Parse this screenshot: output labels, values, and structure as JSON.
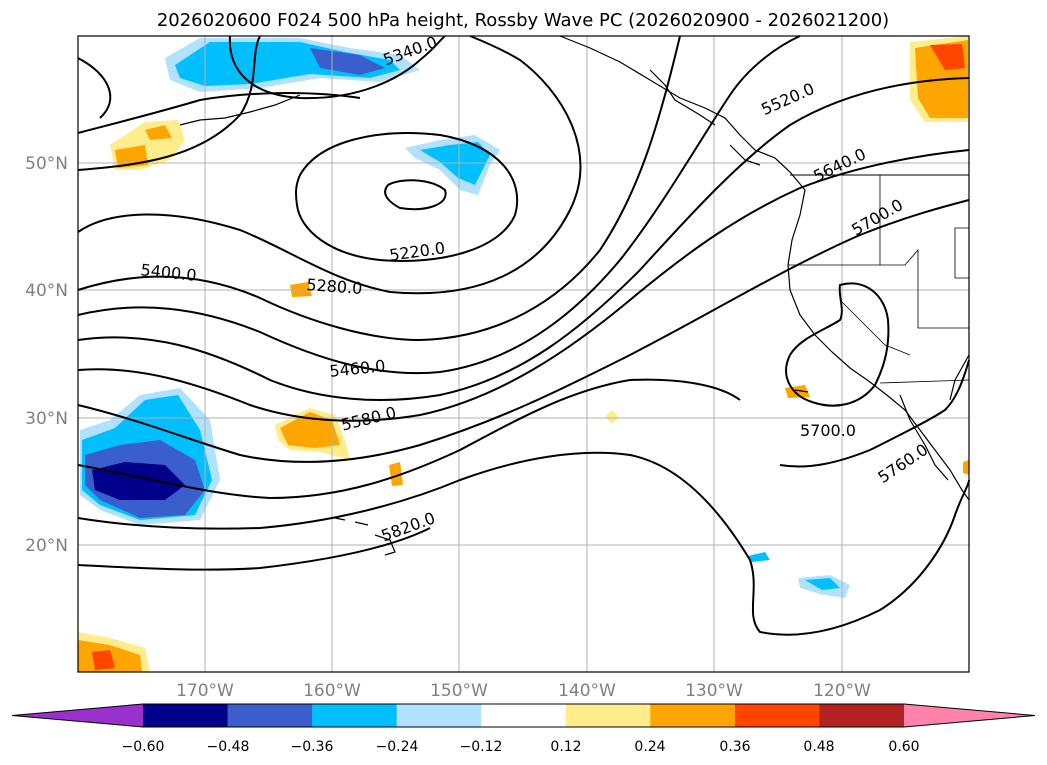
{
  "title": "2026020600 F024 500 hPa height, Rossby Wave PC (2026020900 - 2026021200)",
  "map": {
    "projection": "PlateCarree",
    "lat_labels": [
      "50°N",
      "40°N",
      "30°N",
      "20°N"
    ],
    "lon_labels": [
      "170°W",
      "160°W",
      "150°W",
      "140°W",
      "130°W",
      "120°W"
    ],
    "contour_labels": [
      "5400.0",
      "5280.0",
      "5220.0",
      "5460.0",
      "5580.0",
      "5820.0",
      "5520.0",
      "5640.0",
      "5700.0",
      "5700.0",
      "5760.0",
      "5340.0"
    ]
  },
  "colorbar": {
    "ticks": [
      "−0.60",
      "−0.48",
      "−0.36",
      "−0.24",
      "−0.12",
      "0.12",
      "0.24",
      "0.36",
      "0.48",
      "0.60"
    ],
    "colors": [
      "#9932cc",
      "#00008b",
      "#3a5fcd",
      "#00bfff",
      "#b0e2ff",
      "#ffffff",
      "#ffec8b",
      "#ffa500",
      "#ff4500",
      "#b22222",
      "#ff82ab"
    ],
    "extend": "both"
  }
}
